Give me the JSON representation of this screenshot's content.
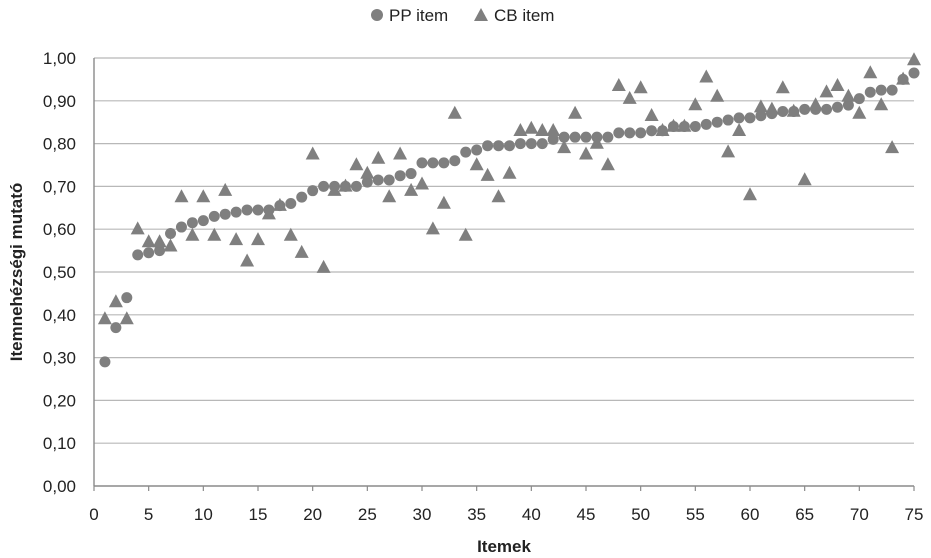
{
  "colors": {
    "marker": "#7f7f7f",
    "grid": "#b8b8b8",
    "axis": "#8a8a8a",
    "text": "#222222"
  },
  "chart_data": {
    "type": "scatter",
    "title": "",
    "xlabel": "Itemek",
    "ylabel": "Itemnehézségi mutató",
    "xlim": [
      0,
      75
    ],
    "ylim": [
      0,
      1
    ],
    "x_ticks": [
      "0",
      "5",
      "10",
      "15",
      "20",
      "25",
      "30",
      "35",
      "40",
      "45",
      "50",
      "55",
      "60",
      "65",
      "70",
      "75"
    ],
    "y_ticks": [
      "0,00",
      "0,10",
      "0,20",
      "0,30",
      "0,40",
      "0,50",
      "0,60",
      "0,70",
      "0,80",
      "0,90",
      "1,00"
    ],
    "grid": true,
    "legend": "top-center",
    "series": [
      {
        "name": "PP item",
        "marker": "circle",
        "x": [
          1,
          2,
          3,
          4,
          5,
          6,
          7,
          8,
          9,
          10,
          11,
          12,
          13,
          14,
          15,
          16,
          17,
          18,
          19,
          20,
          21,
          22,
          23,
          24,
          25,
          26,
          27,
          28,
          29,
          30,
          31,
          32,
          33,
          34,
          35,
          36,
          37,
          38,
          39,
          40,
          41,
          42,
          43,
          44,
          45,
          46,
          47,
          48,
          49,
          50,
          51,
          52,
          53,
          54,
          55,
          56,
          57,
          58,
          59,
          60,
          61,
          62,
          63,
          64,
          65,
          66,
          67,
          68,
          69,
          70,
          71,
          72,
          73,
          74,
          75
        ],
        "y": [
          0.29,
          0.37,
          0.44,
          0.54,
          0.545,
          0.55,
          0.59,
          0.605,
          0.615,
          0.62,
          0.63,
          0.635,
          0.64,
          0.645,
          0.645,
          0.645,
          0.655,
          0.66,
          0.675,
          0.69,
          0.7,
          0.7,
          0.7,
          0.7,
          0.71,
          0.715,
          0.715,
          0.725,
          0.73,
          0.755,
          0.755,
          0.755,
          0.76,
          0.78,
          0.785,
          0.795,
          0.795,
          0.795,
          0.8,
          0.8,
          0.8,
          0.81,
          0.815,
          0.815,
          0.815,
          0.815,
          0.815,
          0.825,
          0.825,
          0.825,
          0.83,
          0.83,
          0.84,
          0.84,
          0.84,
          0.845,
          0.85,
          0.855,
          0.86,
          0.86,
          0.865,
          0.87,
          0.875,
          0.875,
          0.88,
          0.88,
          0.88,
          0.885,
          0.89,
          0.905,
          0.92,
          0.925,
          0.925,
          0.95,
          0.965
        ]
      },
      {
        "name": "CB item",
        "marker": "triangle",
        "x": [
          1,
          2,
          3,
          4,
          5,
          6,
          7,
          8,
          9,
          10,
          11,
          12,
          13,
          14,
          15,
          16,
          17,
          18,
          19,
          20,
          21,
          22,
          23,
          24,
          25,
          26,
          27,
          28,
          29,
          30,
          31,
          32,
          33,
          34,
          35,
          36,
          37,
          38,
          39,
          40,
          41,
          42,
          43,
          44,
          45,
          46,
          47,
          48,
          49,
          50,
          51,
          52,
          53,
          54,
          55,
          56,
          57,
          58,
          59,
          60,
          61,
          62,
          63,
          64,
          65,
          66,
          67,
          68,
          69,
          70,
          71,
          72,
          73,
          74,
          75
        ],
        "y": [
          0.39,
          0.43,
          0.39,
          0.6,
          0.57,
          0.57,
          0.56,
          0.675,
          0.585,
          0.675,
          0.585,
          0.69,
          0.575,
          0.525,
          0.575,
          0.635,
          0.655,
          0.585,
          0.545,
          0.775,
          0.51,
          0.69,
          0.7,
          0.75,
          0.73,
          0.765,
          0.675,
          0.775,
          0.69,
          0.705,
          0.6,
          0.66,
          0.87,
          0.585,
          0.75,
          0.725,
          0.675,
          0.73,
          0.83,
          0.835,
          0.83,
          0.83,
          0.79,
          0.87,
          0.775,
          0.8,
          0.75,
          0.935,
          0.905,
          0.93,
          0.865,
          0.83,
          0.84,
          0.84,
          0.89,
          0.955,
          0.91,
          0.78,
          0.83,
          0.68,
          0.885,
          0.88,
          0.93,
          0.875,
          0.715,
          0.89,
          0.92,
          0.935,
          0.91,
          0.87,
          0.965,
          0.89,
          0.79,
          0.95,
          0.995
        ]
      }
    ]
  }
}
